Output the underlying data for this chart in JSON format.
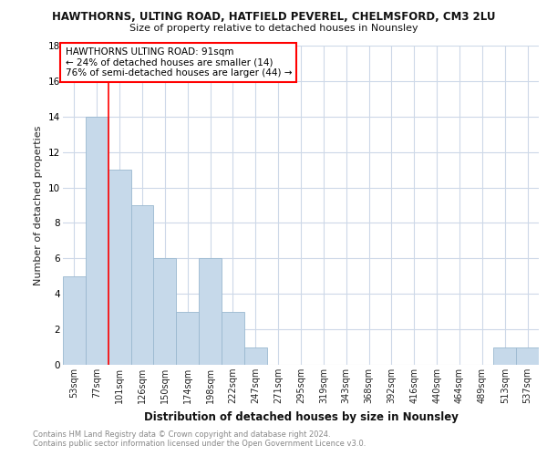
{
  "title": "HAWTHORNS, ULTING ROAD, HATFIELD PEVEREL, CHELMSFORD, CM3 2LU",
  "subtitle": "Size of property relative to detached houses in Nounsley",
  "xlabel": "Distribution of detached houses by size in Nounsley",
  "ylabel": "Number of detached properties",
  "categories": [
    "53sqm",
    "77sqm",
    "101sqm",
    "126sqm",
    "150sqm",
    "174sqm",
    "198sqm",
    "222sqm",
    "247sqm",
    "271sqm",
    "295sqm",
    "319sqm",
    "343sqm",
    "368sqm",
    "392sqm",
    "416sqm",
    "440sqm",
    "464sqm",
    "489sqm",
    "513sqm",
    "537sqm"
  ],
  "values": [
    5,
    14,
    11,
    9,
    6,
    3,
    6,
    3,
    1,
    0,
    0,
    0,
    0,
    0,
    0,
    0,
    0,
    0,
    0,
    1,
    1
  ],
  "bar_color": "#c6d9ea",
  "bar_edge_color": "#9ab8d0",
  "ylim": [
    0,
    18
  ],
  "yticks": [
    0,
    2,
    4,
    6,
    8,
    10,
    12,
    14,
    16,
    18
  ],
  "red_line_x": 1.5,
  "annotation_title": "HAWTHORNS ULTING ROAD: 91sqm",
  "annotation_line1": "← 24% of detached houses are smaller (14)",
  "annotation_line2": "76% of semi-detached houses are larger (44) →",
  "footer_line1": "Contains HM Land Registry data © Crown copyright and database right 2024.",
  "footer_line2": "Contains public sector information licensed under the Open Government Licence v3.0.",
  "background_color": "#ffffff",
  "grid_color": "#cdd8e8"
}
